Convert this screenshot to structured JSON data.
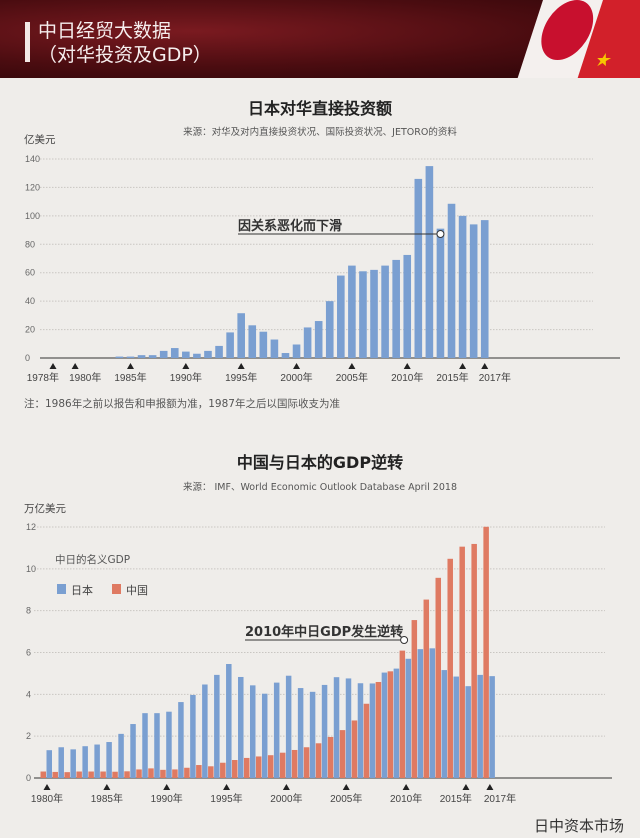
{
  "header": {
    "line1": "中日经贸大数据",
    "line2": "（对华投资及GDP）"
  },
  "colors": {
    "japan": "#7a9fd1",
    "china": "#df7a62",
    "background": "#efedea",
    "header": "#5a0f14"
  },
  "watermark": "日中资本市场",
  "chart_data": [
    {
      "type": "bar",
      "title": "日本对华直接投资额",
      "subtitle": "来源：对华及对内直接投资状况、国际投资状况、JETORO的资料",
      "ylabel": "亿美元",
      "ylim": [
        0,
        140
      ],
      "yticks": [
        0,
        20,
        40,
        60,
        80,
        100,
        120,
        140
      ],
      "grid": true,
      "xtick_labels": [
        "1978年",
        "1980年",
        "1985年",
        "1990年",
        "1995年",
        "2000年",
        "2005年",
        "2010年",
        "2015年",
        "2017年"
      ],
      "xtick_years": [
        1978,
        1980,
        1985,
        1990,
        1995,
        2000,
        2005,
        2010,
        2015,
        2017
      ],
      "categories": [
        1978,
        1979,
        1980,
        1981,
        1982,
        1983,
        1984,
        1985,
        1986,
        1987,
        1988,
        1989,
        1990,
        1991,
        1992,
        1993,
        1994,
        1995,
        1996,
        1997,
        1998,
        1999,
        2000,
        2001,
        2002,
        2003,
        2004,
        2005,
        2006,
        2007,
        2008,
        2009,
        2010,
        2011,
        2012,
        2013,
        2014,
        2015,
        2016,
        2017
      ],
      "values": [
        0,
        0,
        0,
        0,
        0,
        0,
        1,
        1,
        2,
        2,
        5,
        7,
        4.5,
        3,
        5,
        8.5,
        18,
        31.5,
        23,
        18.5,
        13,
        3.5,
        9.5,
        21.5,
        26,
        40,
        58,
        65,
        61,
        62,
        65,
        69,
        72.5,
        126,
        135,
        91,
        108.5,
        100,
        94,
        97
      ],
      "annotation": {
        "text": "因关系恶化而下滑",
        "year": 2013
      },
      "note": "注：1986年之前以报告和申报额为准，1987年之后以国际收支为准"
    },
    {
      "type": "bar",
      "title": "中国与日本的GDP逆转",
      "subtitle": "来源：  IMF、World Economic Outlook Database April 2018",
      "ylabel": "万亿美元",
      "ylim": [
        0,
        12
      ],
      "yticks": [
        0,
        2,
        4,
        6,
        8,
        10,
        12
      ],
      "grid": true,
      "legend_title": "中日的名义GDP",
      "legend_placement": "top-left",
      "xtick_labels": [
        "1980年",
        "1985年",
        "1990年",
        "1995年",
        "2000年",
        "2005年",
        "2010年",
        "2015年",
        "2017年"
      ],
      "xtick_years": [
        1980,
        1985,
        1990,
        1995,
        2000,
        2005,
        2010,
        2015,
        2017
      ],
      "categories": [
        1980,
        1981,
        1982,
        1983,
        1984,
        1985,
        1986,
        1987,
        1988,
        1989,
        1990,
        1991,
        1992,
        1993,
        1994,
        1995,
        1996,
        1997,
        1998,
        1999,
        2000,
        2001,
        2002,
        2003,
        2004,
        2005,
        2006,
        2007,
        2008,
        2009,
        2010,
        2011,
        2012,
        2013,
        2014,
        2015,
        2016,
        2017
      ],
      "series": [
        {
          "name": "日本",
          "values": [
            1.33,
            1.47,
            1.37,
            1.52,
            1.6,
            1.72,
            2.11,
            2.58,
            3.1,
            3.1,
            3.17,
            3.63,
            3.97,
            4.47,
            4.93,
            5.45,
            4.83,
            4.43,
            4.03,
            4.56,
            4.89,
            4.3,
            4.12,
            4.45,
            4.82,
            4.76,
            4.53,
            4.52,
            5.04,
            5.23,
            5.7,
            6.16,
            6.2,
            5.16,
            4.85,
            4.39,
            4.93,
            4.87
          ]
        },
        {
          "name": "中国",
          "values": [
            0.31,
            0.29,
            0.28,
            0.31,
            0.31,
            0.31,
            0.3,
            0.32,
            0.41,
            0.46,
            0.39,
            0.41,
            0.49,
            0.62,
            0.56,
            0.73,
            0.86,
            0.96,
            1.03,
            1.09,
            1.21,
            1.34,
            1.47,
            1.66,
            1.96,
            2.29,
            2.75,
            3.55,
            4.59,
            5.1,
            6.09,
            7.55,
            8.53,
            9.57,
            10.48,
            11.06,
            11.19,
            12.01
          ]
        }
      ],
      "annotation": {
        "text": "2010年中日GDP发生逆转",
        "year": 2010
      }
    }
  ]
}
